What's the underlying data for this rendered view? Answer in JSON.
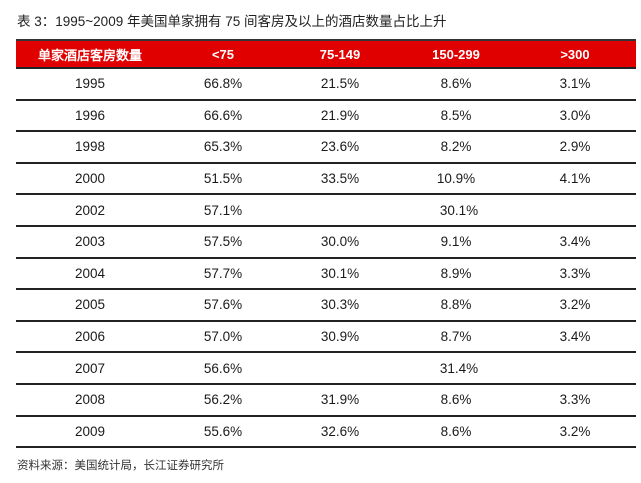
{
  "title": "表 3：1995~2009 年美国单家拥有 75 间客房及以上的酒店数量占比上升",
  "table": {
    "headers": [
      "单家酒店客房数量",
      "<75",
      "75-149",
      "150-299",
      ">300"
    ],
    "rows": [
      {
        "year": "1995",
        "c1": "66.8%",
        "c2": "21.5%",
        "c3": "8.6%",
        "c4": "3.1%"
      },
      {
        "year": "1996",
        "c1": "66.6%",
        "c2": "21.9%",
        "c3": "8.5%",
        "c4": "3.0%"
      },
      {
        "year": "1998",
        "c1": "65.3%",
        "c2": "23.6%",
        "c3": "8.2%",
        "c4": "2.9%"
      },
      {
        "year": "2000",
        "c1": "51.5%",
        "c2": "33.5%",
        "c3": "10.9%",
        "c4": "4.1%"
      },
      {
        "year": "2002",
        "c1": "57.1%",
        "merged": "30.1%"
      },
      {
        "year": "2003",
        "c1": "57.5%",
        "c2": "30.0%",
        "c3": "9.1%",
        "c4": "3.4%"
      },
      {
        "year": "2004",
        "c1": "57.7%",
        "c2": "30.1%",
        "c3": "8.9%",
        "c4": "3.3%"
      },
      {
        "year": "2005",
        "c1": "57.6%",
        "c2": "30.3%",
        "c3": "8.8%",
        "c4": "3.2%"
      },
      {
        "year": "2006",
        "c1": "57.0%",
        "c2": "30.9%",
        "c3": "8.7%",
        "c4": "3.4%"
      },
      {
        "year": "2007",
        "c1": "56.6%",
        "merged": "31.4%"
      },
      {
        "year": "2008",
        "c1": "56.2%",
        "c2": "31.9%",
        "c3": "8.6%",
        "c4": "3.3%"
      },
      {
        "year": "2009",
        "c1": "55.6%",
        "c2": "32.6%",
        "c3": "8.6%",
        "c4": "3.2%"
      }
    ]
  },
  "source": "资料来源：美国统计局，长江证券研究所",
  "colors": {
    "header_bg": "#e00000",
    "header_text": "#ffffff"
  }
}
